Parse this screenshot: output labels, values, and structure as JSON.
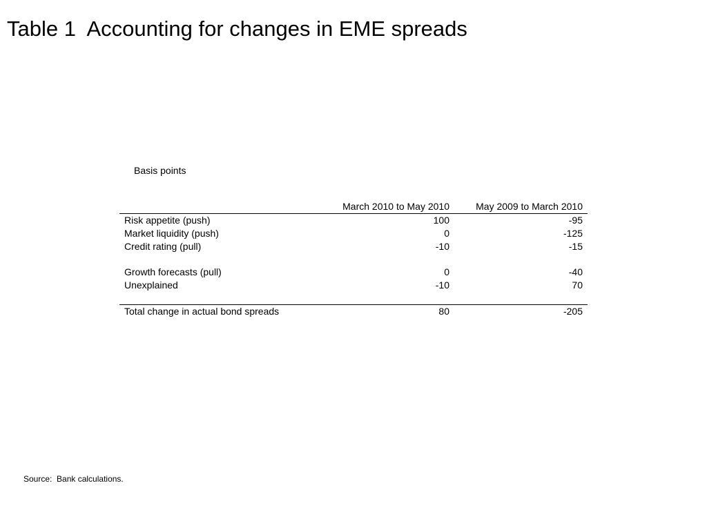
{
  "title": "Table 1  Accounting for changes in EME spreads",
  "units": "Basis points",
  "table": {
    "headers": [
      "",
      "March 2010 to May 2010",
      "May 2009 to March 2010"
    ],
    "rows": [
      {
        "label": "Risk appetite (push)",
        "a": "100",
        "b": "-95"
      },
      {
        "label": "Market liquidity (push)",
        "a": "0",
        "b": "-125"
      },
      {
        "label": "Credit rating (pull)",
        "a": "-10",
        "b": "-15"
      },
      {
        "label": "Growth forecasts (pull)",
        "a": "0",
        "b": "-40"
      },
      {
        "label": "Unexplained",
        "a": "-10",
        "b": "70"
      }
    ],
    "total": {
      "label": "Total change in actual bond spreads",
      "a": "80",
      "b": "-205"
    }
  },
  "source": "Source:  Bank calculations."
}
